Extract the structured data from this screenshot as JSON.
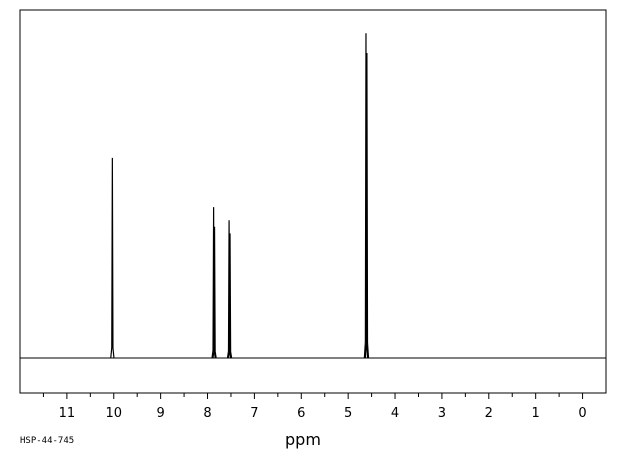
{
  "chart_data": {
    "type": "line",
    "title": "",
    "xlabel": "ppm",
    "ylabel": "",
    "xlim": [
      12.0,
      -0.5
    ],
    "x_ticks": [
      11,
      10,
      9,
      8,
      7,
      6,
      5,
      4,
      3,
      2,
      1,
      0
    ],
    "minor_tick_step": 0.5,
    "ylim": [
      0,
      1
    ],
    "grid": false,
    "legend": "none",
    "line_color": "#000000",
    "peaks": [
      {
        "ppm": 10.03,
        "height": 0.61,
        "width": 0.012
      },
      {
        "ppm": 7.87,
        "height": 0.46,
        "width": 0.008
      },
      {
        "ppm": 7.85,
        "height": 0.4,
        "width": 0.008
      },
      {
        "ppm": 7.54,
        "height": 0.42,
        "width": 0.008
      },
      {
        "ppm": 7.52,
        "height": 0.38,
        "width": 0.008
      },
      {
        "ppm": 4.62,
        "height": 0.99,
        "width": 0.008
      },
      {
        "ppm": 4.6,
        "height": 0.93,
        "width": 0.008
      }
    ]
  },
  "footer": {
    "code": "HSP-44-745"
  }
}
